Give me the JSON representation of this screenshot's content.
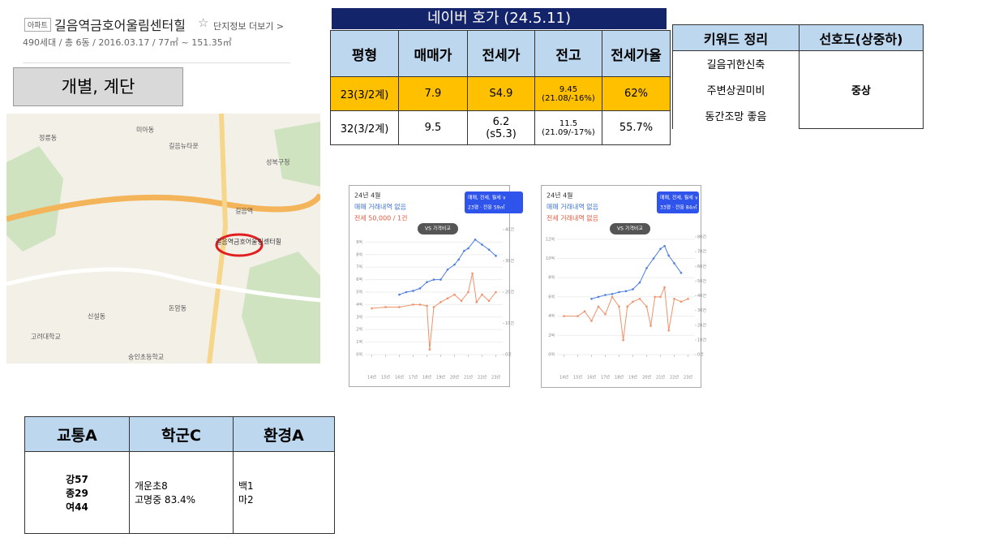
{
  "header": {
    "tag": "아파트",
    "title": "길음역금호어울림센터힐",
    "star": "☆",
    "link": "단지정보 더보기 >",
    "subtitle": "490세대 / 총 6동 / 2016.03.17 / 77㎡ ~ 151.35㎡"
  },
  "label_box": "개별, 계단",
  "map": {
    "labels": [
      "길음역금호어울림센터힐",
      "길음뉴타운",
      "길음역",
      "정릉동",
      "돈암동",
      "성북구청",
      "미아동",
      "고려대학교",
      "숭인초등학교",
      "신설동"
    ]
  },
  "price_table": {
    "title": "네이버 호가 (24.5.11)",
    "headers": [
      "평형",
      "매매가",
      "전세가",
      "전고",
      "전세가율"
    ],
    "rows": [
      [
        "23(3/2계)",
        "7.9",
        "S4.9",
        [
          "9.45",
          "(21.08/-16%)"
        ],
        "62%"
      ],
      [
        "32(3/2계)",
        "9.5",
        [
          "6.2",
          "(s5.3)"
        ],
        [
          "11.5",
          "(21.09/-17%)"
        ],
        "55.7%"
      ]
    ]
  },
  "keyword_table": {
    "headers": [
      "키워드 정리",
      "선호도(상중하)"
    ],
    "keywords": [
      "길음귀한신축",
      "주변상권미비",
      "동간조망 좋음"
    ],
    "rating": "중상"
  },
  "score_table": {
    "headers": [
      "교통A",
      "학군C",
      "환경A"
    ],
    "cells": [
      [
        "강57",
        "종29",
        "여44"
      ],
      [
        "개운초8",
        "고명중 83.4%"
      ],
      [
        "백1",
        "마2"
      ]
    ]
  },
  "price_charts": [
    {
      "type": "line",
      "date": "24년 4월",
      "note1": "매매 거래내역 없음",
      "note2": "전세 50,000 / 1건",
      "button": "매매, 전세, 월세 ∨",
      "size": "23평 · 전용 59㎡",
      "compare": "VS 가격비교",
      "xlim": [
        13.5,
        23.5
      ],
      "xticks": [
        {
          "value": 14,
          "label": "14년"
        },
        {
          "value": 15,
          "label": "15년"
        },
        {
          "value": 16,
          "label": "16년"
        },
        {
          "value": 17,
          "label": "17년"
        },
        {
          "value": 18,
          "label": "18년"
        },
        {
          "value": 19,
          "label": "19년"
        },
        {
          "value": 20,
          "label": "20년"
        },
        {
          "value": 21,
          "label": "21년"
        },
        {
          "value": 22,
          "label": "22년"
        },
        {
          "value": 23,
          "label": "23년"
        }
      ],
      "ylim": [
        0,
        10
      ],
      "yticks": [
        {
          "value": 0,
          "label": "0억"
        },
        {
          "value": 1,
          "label": "1억"
        },
        {
          "value": 2,
          "label": "2억"
        },
        {
          "value": 3,
          "label": "3억"
        },
        {
          "value": 4,
          "label": "4억"
        },
        {
          "value": 5,
          "label": "5억"
        },
        {
          "value": 6,
          "label": "6억"
        },
        {
          "value": 7,
          "label": "7억"
        },
        {
          "value": 8,
          "label": "8억"
        },
        {
          "value": 9,
          "label": "9억"
        }
      ],
      "y2lim": [
        0,
        40
      ],
      "y2ticks": [
        {
          "value": 0,
          "label": "0건"
        },
        {
          "value": 10,
          "label": "10건"
        },
        {
          "value": 20,
          "label": "20건"
        },
        {
          "value": 30,
          "label": "30건"
        },
        {
          "value": 40,
          "label": "40건"
        }
      ],
      "series": [
        {
          "color": "#4f7de0",
          "x": [
            16,
            16.5,
            17,
            17.5,
            18,
            18.5,
            19,
            19.5,
            20,
            20.3,
            20.7,
            21,
            21.5,
            22,
            22.5,
            23
          ],
          "values": [
            4.8,
            5,
            5.1,
            5.3,
            5.8,
            6,
            6,
            6.8,
            7.2,
            7.6,
            8.3,
            8.5,
            9.2,
            8.8,
            8.4,
            7.9
          ]
        },
        {
          "color": "#f0926a",
          "x": [
            14,
            15,
            16,
            17,
            17.5,
            18,
            18.2,
            18.5,
            19,
            19.5,
            20,
            20.5,
            21,
            21.3,
            21.6,
            22,
            22.5,
            23
          ],
          "values": [
            3.7,
            3.8,
            3.8,
            4,
            4,
            3.9,
            0.4,
            3.8,
            4.2,
            4.5,
            4.8,
            4.3,
            5,
            6.5,
            4.2,
            4.8,
            4.3,
            5
          ]
        }
      ]
    },
    {
      "type": "line",
      "date": "24년 4월",
      "note1": "매매 거래내역 없음",
      "note2": "전세 거래내역 없음",
      "button": "매매, 전세, 월세 ∨",
      "size": "33평 · 전용 84㎡",
      "compare": "VS 가격비교",
      "xlim": [
        13.5,
        23.5
      ],
      "xticks": [
        {
          "value": 14,
          "label": "14년"
        },
        {
          "value": 15,
          "label": "15년"
        },
        {
          "value": 16,
          "label": "16년"
        },
        {
          "value": 17,
          "label": "17년"
        },
        {
          "value": 18,
          "label": "18년"
        },
        {
          "value": 19,
          "label": "19년"
        },
        {
          "value": 20,
          "label": "20년"
        },
        {
          "value": 21,
          "label": "21년"
        },
        {
          "value": 22,
          "label": "22년"
        },
        {
          "value": 23,
          "label": "23년"
        }
      ],
      "ylim": [
        0,
        13
      ],
      "yticks": [
        {
          "value": 0,
          "label": "0억"
        },
        {
          "value": 2,
          "label": "2억"
        },
        {
          "value": 4,
          "label": "4억"
        },
        {
          "value": 6,
          "label": "6억"
        },
        {
          "value": 8,
          "label": "8억"
        },
        {
          "value": 10,
          "label": "10억"
        },
        {
          "value": 12,
          "label": "12억"
        }
      ],
      "y2lim": [
        0,
        85
      ],
      "y2ticks": [
        {
          "value": 0,
          "label": "0건"
        },
        {
          "value": 10,
          "label": "10건"
        },
        {
          "value": 20,
          "label": "20건"
        },
        {
          "value": 30,
          "label": "30건"
        },
        {
          "value": 40,
          "label": "40건"
        },
        {
          "value": 50,
          "label": "50건"
        },
        {
          "value": 60,
          "label": "60건"
        },
        {
          "value": 70,
          "label": "70건"
        },
        {
          "value": 80,
          "label": "80건"
        }
      ],
      "series": [
        {
          "color": "#4f7de0",
          "x": [
            16,
            16.5,
            17,
            17.5,
            18,
            18.5,
            19,
            19.5,
            20,
            20.5,
            21,
            21.3,
            21.6,
            22,
            22.5
          ],
          "values": [
            5.8,
            6,
            6.2,
            6.3,
            6.5,
            6.6,
            6.8,
            7.5,
            9,
            10,
            11,
            11.3,
            10.3,
            9.5,
            8.5
          ]
        },
        {
          "color": "#f0926a",
          "x": [
            14,
            15,
            15.5,
            16,
            16.5,
            17,
            17.5,
            18,
            18.3,
            18.6,
            19,
            19.5,
            20,
            20.3,
            20.6,
            21,
            21.3,
            21.6,
            22,
            22.5,
            23
          ],
          "values": [
            4,
            4,
            4.5,
            3.5,
            5,
            4.2,
            6,
            5,
            1.5,
            5,
            5.5,
            5.8,
            5,
            3,
            6,
            6,
            7,
            2.5,
            5.8,
            5.5,
            5.8
          ]
        }
      ]
    }
  ]
}
